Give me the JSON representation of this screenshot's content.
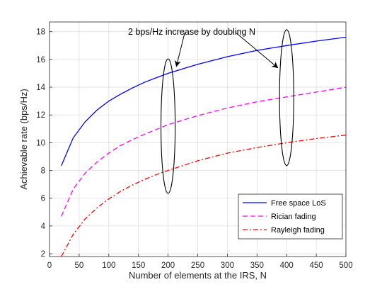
{
  "chart_data": {
    "type": "line",
    "xlabel": "Number of elements at the IRS, N",
    "ylabel": "Achievable rate (bps/Hz)",
    "xlim": [
      0,
      500
    ],
    "ylim": [
      1.8,
      18.7
    ],
    "xticks": [
      0,
      50,
      100,
      150,
      200,
      250,
      300,
      350,
      400,
      450,
      500
    ],
    "yticks": [
      2,
      4,
      6,
      8,
      10,
      12,
      14,
      16,
      18
    ],
    "grid": true,
    "legend_position": "bottom-right",
    "series": [
      {
        "name": "Free space LoS",
        "color": "#0000ff",
        "style": "solid",
        "x": [
          20,
          40,
          60,
          80,
          100,
          120,
          140,
          160,
          180,
          200,
          250,
          300,
          350,
          400,
          450,
          500
        ],
        "y": [
          8.35,
          10.35,
          11.5,
          12.35,
          13.0,
          13.5,
          13.95,
          14.35,
          14.68,
          15.0,
          15.65,
          16.2,
          16.65,
          17.0,
          17.32,
          17.6
        ]
      },
      {
        "name": "Rician fading",
        "color": "#ff00ff",
        "style": "dashed",
        "x": [
          20,
          40,
          60,
          80,
          100,
          120,
          140,
          160,
          180,
          200,
          250,
          300,
          350,
          400,
          450,
          500
        ],
        "y": [
          4.7,
          6.65,
          7.8,
          8.6,
          9.25,
          9.8,
          10.22,
          10.6,
          10.95,
          11.3,
          11.95,
          12.5,
          12.95,
          13.3,
          13.65,
          14.0
        ]
      },
      {
        "name": "Rayleigh fading",
        "color": "#ff0000",
        "style": "dashdot",
        "x": [
          20,
          40,
          60,
          80,
          100,
          120,
          140,
          160,
          180,
          200,
          250,
          300,
          350,
          400,
          450,
          500
        ],
        "y": [
          1.8,
          3.4,
          4.5,
          5.3,
          5.95,
          6.5,
          6.95,
          7.35,
          7.7,
          8.0,
          8.7,
          9.25,
          9.65,
          10.0,
          10.3,
          10.55
        ]
      }
    ],
    "annotations": [
      {
        "text": "2 bps/Hz increase by doubling N",
        "ellipses": [
          {
            "cx": 200,
            "cy": 11.2,
            "rx_data": 12,
            "ry_data": 4.85
          },
          {
            "cx": 400,
            "cy": 13.25,
            "rx_data": 12,
            "ry_data": 4.9
          }
        ],
        "arrows": [
          {
            "from": [
              228,
              17.9
            ],
            "to": [
              214,
              15.5
            ]
          },
          {
            "from": [
              315,
              17.9
            ],
            "to": [
              385,
              15.4
            ]
          }
        ]
      }
    ]
  }
}
